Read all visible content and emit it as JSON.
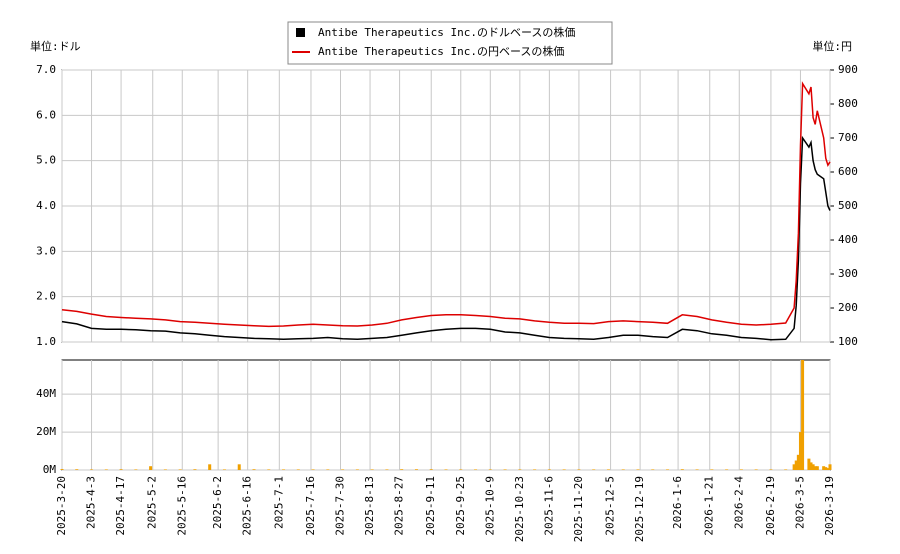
{
  "chart_data": {
    "type": "stock",
    "left_unit": "単位:ドル",
    "right_unit": "単位:円",
    "x": [
      "2025-3-20",
      "2025-3-27",
      "2025-4-3",
      "2025-4-10",
      "2025-4-17",
      "2025-4-24",
      "2025-5-1",
      "2025-5-8",
      "2025-5-15",
      "2025-5-22",
      "2025-5-29",
      "2025-6-5",
      "2025-6-12",
      "2025-6-19",
      "2025-6-26",
      "2025-7-3",
      "2025-7-10",
      "2025-7-17",
      "2025-7-24",
      "2025-7-31",
      "2025-8-7",
      "2025-8-14",
      "2025-8-21",
      "2025-8-28",
      "2025-9-4",
      "2025-9-11",
      "2025-9-18",
      "2025-9-25",
      "2025-10-2",
      "2025-10-9",
      "2025-10-16",
      "2025-10-23",
      "2025-10-30",
      "2025-11-6",
      "2025-11-13",
      "2025-11-20",
      "2025-11-27",
      "2025-12-4",
      "2025-12-11",
      "2025-12-18",
      "2025-12-25",
      "2026-1-1",
      "2026-1-8",
      "2026-1-15",
      "2026-1-22",
      "2026-1-29",
      "2026-2-5",
      "2026-2-12",
      "2026-2-19",
      "2026-2-26",
      "2026-3-2",
      "2026-3-3",
      "2026-3-4",
      "2026-3-5",
      "2026-3-6",
      "2026-3-9",
      "2026-3-10",
      "2026-3-11",
      "2026-3-12",
      "2026-3-13",
      "2026-3-16",
      "2026-3-17",
      "2026-3-18",
      "2026-3-19"
    ],
    "xlim": [
      "2025-3-20",
      "2026-3-19"
    ],
    "xticks": [
      "2025-3-20",
      "2025-4-3",
      "2025-4-17",
      "2025-5-2",
      "2025-5-16",
      "2025-6-2",
      "2025-6-16",
      "2025-7-1",
      "2025-7-16",
      "2025-7-30",
      "2025-8-13",
      "2025-8-27",
      "2025-9-11",
      "2025-9-25",
      "2025-10-9",
      "2025-10-23",
      "2025-11-6",
      "2025-11-20",
      "2025-12-5",
      "2025-12-19",
      "2026-1-6",
      "2026-1-21",
      "2026-2-4",
      "2026-2-19",
      "2026-3-5",
      "2026-3-19"
    ],
    "series": [
      {
        "name": "Antibe Therapeutics Inc.のドルベースの株価",
        "color": "#000000",
        "axis": "y",
        "values": [
          1.45,
          1.4,
          1.3,
          1.28,
          1.28,
          1.27,
          1.25,
          1.24,
          1.2,
          1.18,
          1.15,
          1.12,
          1.1,
          1.08,
          1.07,
          1.06,
          1.07,
          1.08,
          1.1,
          1.07,
          1.06,
          1.08,
          1.1,
          1.15,
          1.2,
          1.25,
          1.28,
          1.3,
          1.3,
          1.28,
          1.22,
          1.2,
          1.15,
          1.1,
          1.08,
          1.07,
          1.06,
          1.1,
          1.15,
          1.15,
          1.12,
          1.1,
          1.28,
          1.25,
          1.18,
          1.15,
          1.1,
          1.08,
          1.05,
          1.06,
          1.3,
          1.8,
          2.8,
          4.5,
          5.5,
          5.3,
          5.4,
          5.0,
          4.8,
          4.7,
          4.6,
          4.3,
          4.0,
          3.9
        ]
      },
      {
        "name": "Antibe Therapeutics Inc.の円ベースの株価",
        "color": "#dd0000",
        "axis": "y2",
        "values": [
          195,
          190,
          182,
          175,
          172,
          170,
          168,
          165,
          160,
          158,
          155,
          152,
          150,
          148,
          146,
          147,
          150,
          152,
          150,
          148,
          147,
          150,
          155,
          165,
          172,
          178,
          180,
          180,
          178,
          175,
          170,
          168,
          162,
          158,
          155,
          155,
          154,
          160,
          162,
          160,
          158,
          155,
          180,
          175,
          165,
          158,
          152,
          150,
          152,
          156,
          200,
          280,
          420,
          680,
          860,
          830,
          850,
          760,
          740,
          780,
          700,
          640,
          620,
          630
        ]
      }
    ],
    "volume": {
      "color": "#f0a000",
      "values": [
        500000,
        400000,
        300000,
        300000,
        400000,
        300000,
        2000000,
        300000,
        300000,
        400000,
        3000000,
        300000,
        3000000,
        400000,
        300000,
        300000,
        300000,
        300000,
        300000,
        300000,
        300000,
        300000,
        300000,
        400000,
        400000,
        400000,
        300000,
        300000,
        300000,
        300000,
        300000,
        300000,
        300000,
        300000,
        300000,
        300000,
        300000,
        300000,
        300000,
        300000,
        300000,
        300000,
        400000,
        300000,
        300000,
        300000,
        300000,
        300000,
        300000,
        300000,
        3000000,
        5000000,
        8000000,
        20000000,
        58000000,
        6000000,
        4000000,
        3000000,
        2000000,
        2000000,
        2000000,
        1500000,
        1000000,
        3000000
      ],
      "ylim": [
        0,
        58000000
      ],
      "yticks": [
        {
          "value": 0,
          "label": "0M"
        },
        {
          "value": 20000000,
          "label": "20M"
        },
        {
          "value": 40000000,
          "label": "40M"
        }
      ]
    },
    "ylim": [
      1,
      7
    ],
    "yticks": [
      {
        "value": 1,
        "label": "1.0"
      },
      {
        "value": 2,
        "label": "2.0"
      },
      {
        "value": 3,
        "label": "3.0"
      },
      {
        "value": 4,
        "label": "4.0"
      },
      {
        "value": 5,
        "label": "5.0"
      },
      {
        "value": 6,
        "label": "6.0"
      },
      {
        "value": 7,
        "label": "7.0"
      }
    ],
    "y2lim": [
      100,
      900
    ],
    "y2ticks": [
      100,
      200,
      300,
      400,
      500,
      600,
      700,
      800,
      900
    ],
    "grid": true
  }
}
